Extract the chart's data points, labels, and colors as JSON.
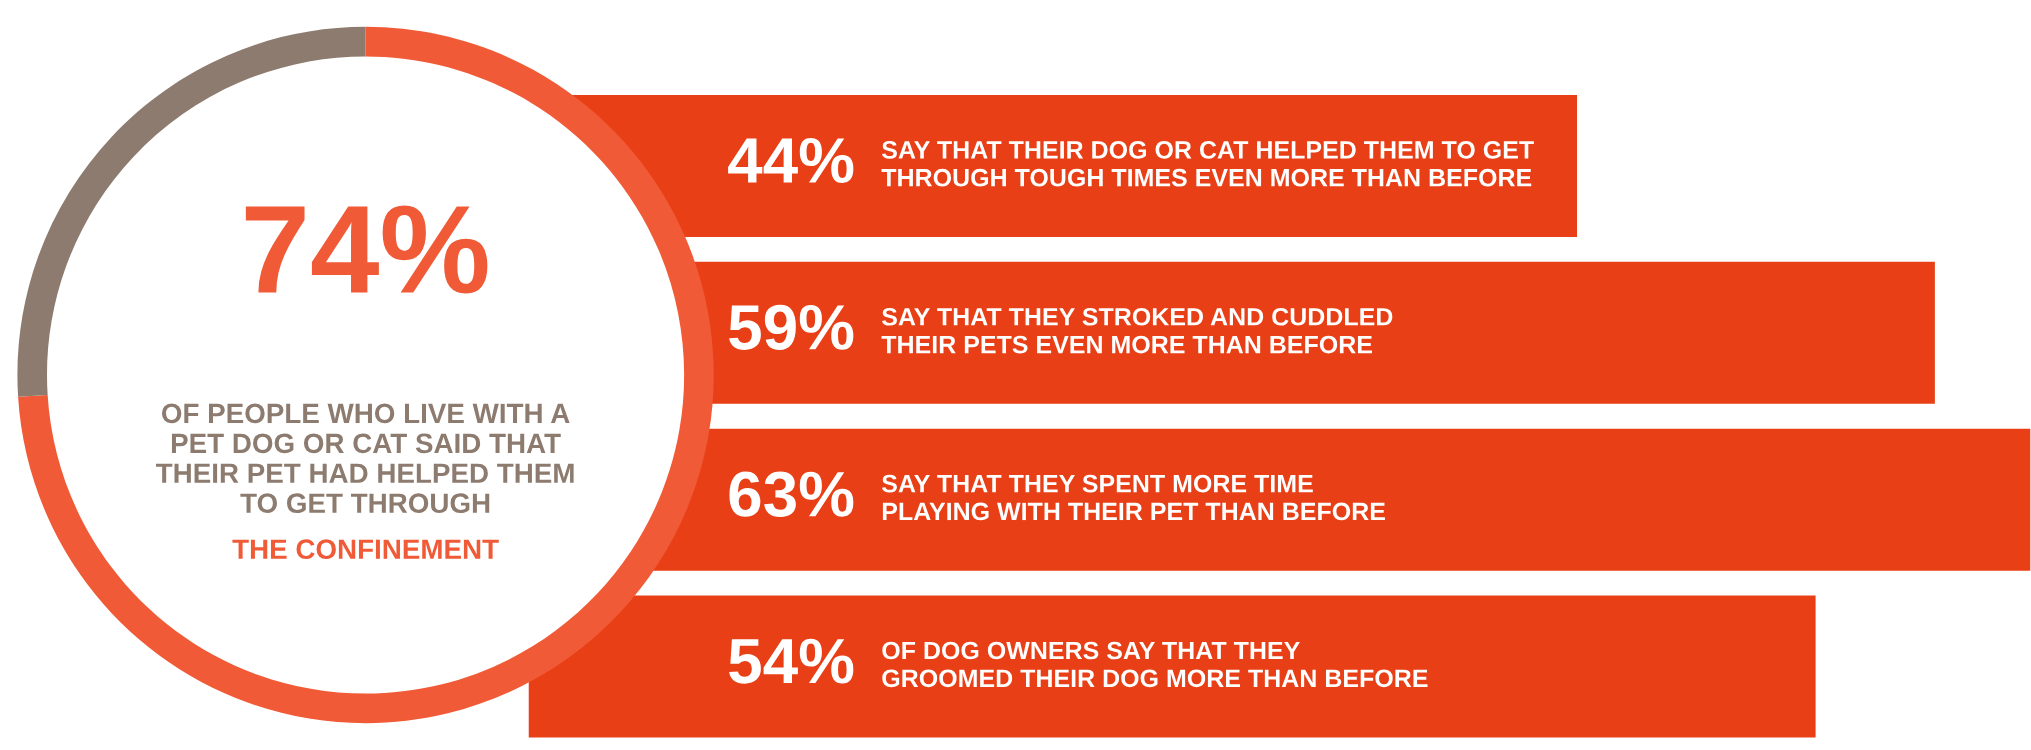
{
  "chart_data": [
    {
      "type": "donut",
      "categories": [
        null,
        null
      ],
      "values": [
        74,
        26
      ],
      "colors": [
        "#f15a36",
        "#8c7b6e"
      ],
      "value_labels": [
        "74%",
        null
      ],
      "annotations": [
        "OF PEOPLE WHO LIVE WITH A PET DOG OR CAT SAID THAT THEIR PET HAD HELPED THEM TO GET THROUGH",
        "THE CONFINEMENT"
      ]
    },
    {
      "type": "bar",
      "orientation": "horizontal",
      "color": "#e93f16",
      "categories": [
        "SAY THAT THEIR DOG OR CAT HELPED THEM TO GET THROUGH TOUGH TIMES EVEN MORE THAN BEFORE",
        "SAY THAT THEY STROKED AND CUDDLED THEIR PETS EVEN MORE THAN BEFORE",
        "SAY THAT THEY SPENT MORE TIME PLAYING WITH THEIR PET THAN BEFORE",
        "OF DOG OWNERS SAY THAT THEY GROOMED THEIR DOG MORE THAN BEFORE"
      ],
      "values": [
        44,
        59,
        63,
        54
      ],
      "value_labels": [
        "44%",
        "59%",
        "63%",
        "54%"
      ]
    }
  ]
}
